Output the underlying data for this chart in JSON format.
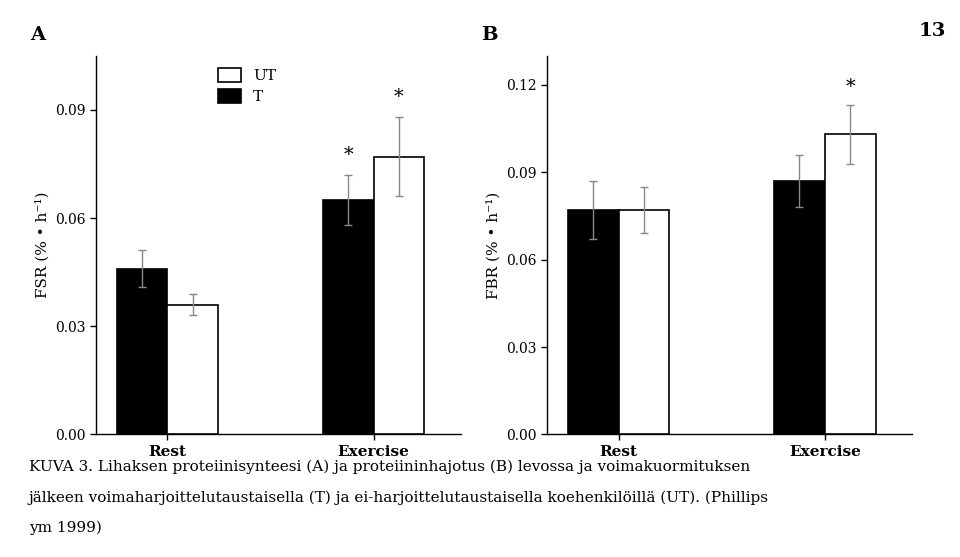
{
  "panel_A": {
    "label": "A",
    "ylabel": "FSR (% • h⁻¹)",
    "ylim": [
      0,
      0.105
    ],
    "yticks": [
      0.0,
      0.03,
      0.06,
      0.09
    ],
    "groups": [
      "Rest",
      "Exercise"
    ],
    "T_values": [
      0.046,
      0.065
    ],
    "T_errors": [
      0.005,
      0.007
    ],
    "UT_values": [
      0.036,
      0.077
    ],
    "UT_errors": [
      0.003,
      0.011
    ],
    "significance_T": [
      false,
      true
    ],
    "significance_UT": [
      false,
      true
    ]
  },
  "panel_B": {
    "label": "B",
    "ylabel": "FBR (% • h⁻¹)",
    "ylim": [
      0,
      0.13
    ],
    "yticks": [
      0.0,
      0.03,
      0.06,
      0.09,
      0.12
    ],
    "groups": [
      "Rest",
      "Exercise"
    ],
    "T_values": [
      0.077,
      0.087
    ],
    "T_errors": [
      0.01,
      0.009
    ],
    "UT_values": [
      0.077,
      0.103
    ],
    "UT_errors": [
      0.008,
      0.01
    ],
    "significance_T": [
      false,
      false
    ],
    "significance_UT": [
      false,
      true
    ]
  },
  "legend_labels": [
    "UT",
    "T"
  ],
  "bar_colors": {
    "UT": "#ffffff",
    "T": "#000000"
  },
  "bar_edgecolor": "#000000",
  "bar_width": 0.32,
  "caption_line1": "KUVA 3. Lihaksen proteiinisynteesi (A) ja proteiininhajotus (B) levossa ja voimakuormituksen",
  "caption_line2": "jälkeen voimaharjoittelutaustaisella (T) ja ei-harjoittelutaustaisella koehenkilöillä (UT). (Phillips",
  "caption_line3": "ym 1999)",
  "page_number": "13",
  "background_color": "#ffffff",
  "fontsize_axis_label": 11,
  "fontsize_ticks": 10,
  "fontsize_panel_label": 14,
  "fontsize_caption": 11,
  "fontsize_star": 14,
  "fontsize_legend": 11
}
